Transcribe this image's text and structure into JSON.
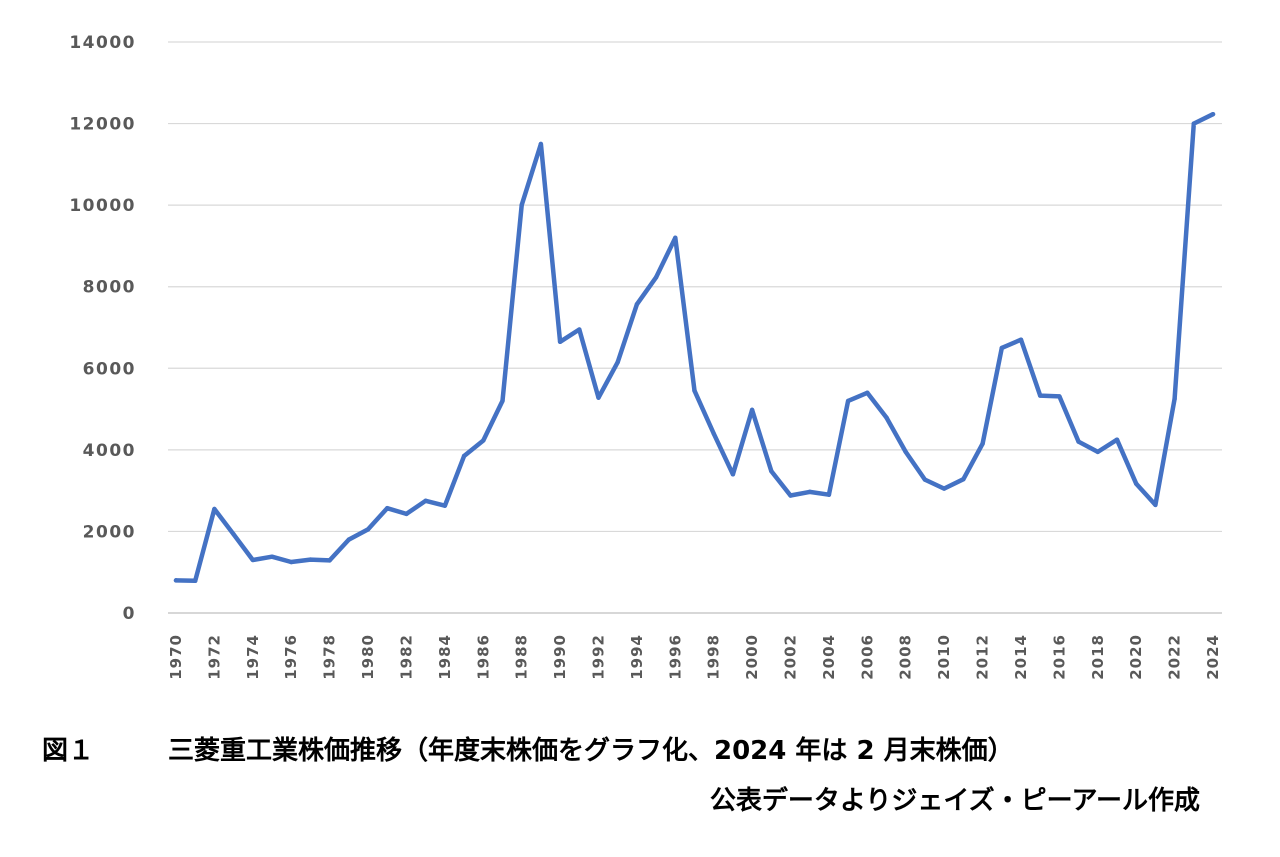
{
  "chart_data": {
    "type": "line",
    "title": "",
    "xlabel": "",
    "ylabel": "",
    "ylim": [
      0,
      14000
    ],
    "yticks": [
      "0",
      "2000",
      "4000",
      "6000",
      "8000",
      "10000",
      "12000",
      "14000"
    ],
    "xticks": [
      "1970",
      "1972",
      "1974",
      "1976",
      "1978",
      "1980",
      "1982",
      "1984",
      "1986",
      "1988",
      "1990",
      "1992",
      "1994",
      "1996",
      "1998",
      "2000",
      "2002",
      "2004",
      "2006",
      "2008",
      "2010",
      "2012",
      "2014",
      "2016",
      "2018",
      "2020",
      "2022",
      "2024"
    ],
    "grid": true,
    "legend": "none",
    "series": [
      {
        "color": "#4472C4",
        "x": [
          1970,
          1971,
          1972,
          1973,
          1974,
          1975,
          1976,
          1977,
          1978,
          1979,
          1980,
          1981,
          1982,
          1983,
          1984,
          1985,
          1986,
          1987,
          1988,
          1989,
          1990,
          1991,
          1992,
          1993,
          1994,
          1995,
          1996,
          1997,
          1998,
          1999,
          2000,
          2001,
          2002,
          2003,
          2004,
          2005,
          2006,
          2007,
          2008,
          2009,
          2010,
          2011,
          2012,
          2013,
          2014,
          2015,
          2016,
          2017,
          2018,
          2019,
          2020,
          2021,
          2022,
          2023,
          2024
        ],
        "values": [
          800,
          790,
          2550,
          1930,
          1300,
          1380,
          1250,
          1310,
          1290,
          1800,
          2050,
          2570,
          2430,
          2750,
          2630,
          3850,
          4230,
          5200,
          10000,
          11500,
          6650,
          6950,
          5280,
          6150,
          7570,
          8230,
          9200,
          5450,
          4400,
          3400,
          4980,
          3480,
          2880,
          2970,
          2900,
          5200,
          5400,
          4790,
          3950,
          3270,
          3050,
          3280,
          4150,
          6500,
          6700,
          5330,
          5310,
          4200,
          3950,
          4250,
          3170,
          2650,
          5250,
          12000,
          12230
        ]
      }
    ]
  },
  "caption": {
    "label": "図１",
    "title": "三菱重工業株価推移（年度末株価をグラフ化、2024 年は 2 月末株価）",
    "source": "公表データよりジェイズ・ピーアール作成"
  }
}
